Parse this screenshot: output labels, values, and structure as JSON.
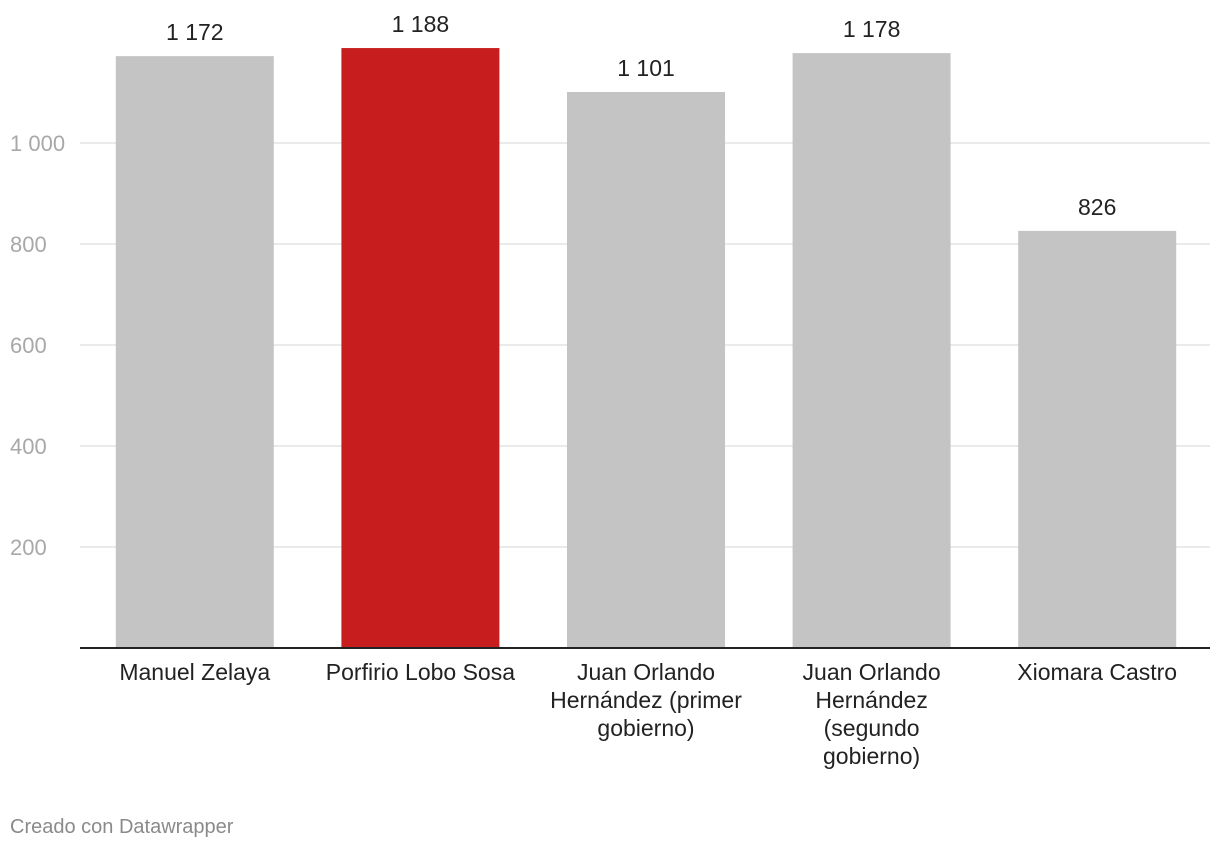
{
  "chart_data": {
    "type": "bar",
    "categories": [
      "Manuel Zelaya",
      "Porfirio Lobo Sosa",
      "Juan Orlando Hernández (primer gobierno)",
      "Juan Orlando Hernández (segundo gobierno)",
      "Xiomara Castro"
    ],
    "category_label_lines": [
      [
        "Manuel Zelaya"
      ],
      [
        "Porfirio Lobo Sosa"
      ],
      [
        "Juan Orlando",
        "Hernández (primer",
        "gobierno)"
      ],
      [
        "Juan Orlando",
        "Hernández",
        "(segundo",
        "gobierno)"
      ],
      [
        "Xiomara Castro"
      ]
    ],
    "values": [
      1172,
      1188,
      1101,
      1178,
      826
    ],
    "value_labels": [
      "1 172",
      "1 188",
      "1 101",
      "1 178",
      "826"
    ],
    "highlight_index": 1,
    "yticks": [
      200,
      400,
      600,
      800,
      1000
    ],
    "ytick_labels": [
      "200",
      "400",
      "600",
      "800",
      "1 000"
    ],
    "ylim": [
      0,
      1200
    ],
    "grid": true,
    "title": "",
    "xlabel": "",
    "ylabel": ""
  },
  "colors": {
    "bar": "#c4c4c4",
    "highlight": "#c81d1f",
    "grid": "#e3e3e3",
    "baseline": "#222222"
  },
  "footer": {
    "credit": "Creado con Datawrapper"
  }
}
